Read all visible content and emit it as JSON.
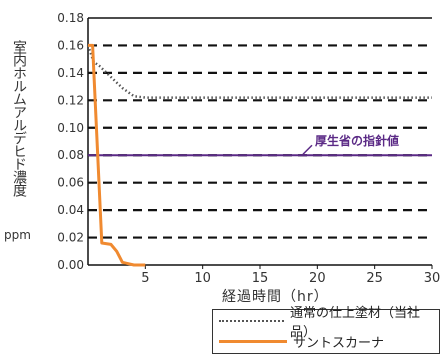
{
  "chart_data": {
    "type": "line",
    "title": "経過時間（hr）",
    "ylabel": "室内ホルムアルデヒド濃度",
    "yunit": "ppm",
    "xlabel": "経過時間（hr）",
    "xlim": [
      0,
      30
    ],
    "ylim": [
      0,
      0.18
    ],
    "x_ticks": [
      "5",
      "10",
      "15",
      "20",
      "25",
      "30"
    ],
    "y_ticks": [
      "0.00",
      "0.02",
      "0.04",
      "0.06",
      "0.08",
      "0.10",
      "0.12",
      "0.14",
      "0.16",
      "0.18"
    ],
    "grid": true,
    "legend_position": "bottom-right",
    "series": [
      {
        "name": "通常の仕上塗材（当社品）",
        "color": "#555555",
        "style": "dotted",
        "points": [
          [
            0,
            0.16
          ],
          [
            0.5,
            0.148
          ],
          [
            1,
            0.145
          ],
          [
            2,
            0.137
          ],
          [
            3,
            0.129
          ],
          [
            4,
            0.123
          ],
          [
            5,
            0.122
          ],
          [
            10,
            0.122
          ],
          [
            20,
            0.122
          ],
          [
            30,
            0.122
          ]
        ]
      },
      {
        "name": "サントスカーナ",
        "color": "#f08a30",
        "style": "solid",
        "points": [
          [
            0,
            0.16
          ],
          [
            0.4,
            0.16
          ],
          [
            1.2,
            0.016
          ],
          [
            2,
            0.015
          ],
          [
            2.5,
            0.01
          ],
          [
            3,
            0.002
          ],
          [
            4,
            0.0
          ],
          [
            5,
            0.0
          ]
        ]
      }
    ],
    "reference_line": {
      "label": "厚生省の指針値",
      "value": 0.08,
      "color": "#5b2a86"
    }
  }
}
